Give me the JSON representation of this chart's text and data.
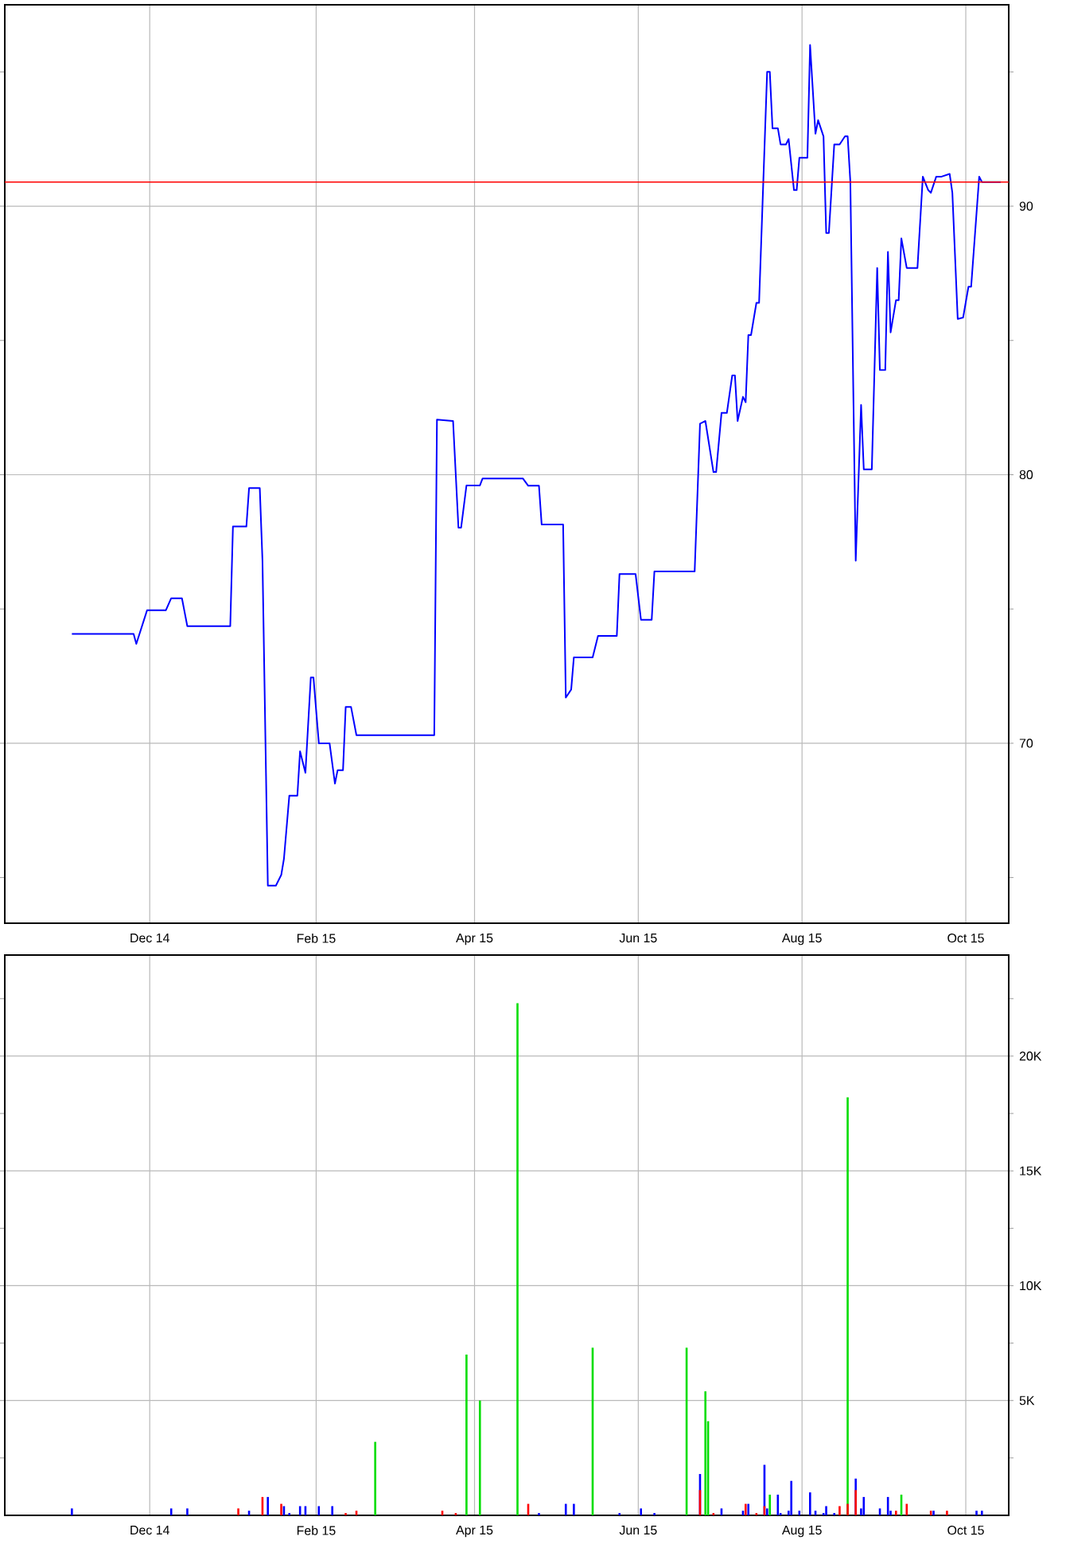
{
  "chart_data": [
    {
      "type": "line",
      "color": "#0000ff",
      "grid": true,
      "x": [
        "2014-11-02",
        "2014-11-25",
        "2014-11-26",
        "2014-11-30",
        "2014-12-07",
        "2014-12-09",
        "2014-12-13",
        "2014-12-15",
        "2014-12-31",
        "2015-01-01",
        "2015-01-06",
        "2015-01-07",
        "2015-01-11",
        "2015-01-12",
        "2015-01-14",
        "2015-01-17",
        "2015-01-19",
        "2015-01-20",
        "2015-01-22",
        "2015-01-25",
        "2015-01-26",
        "2015-01-28",
        "2015-01-30",
        "2015-01-31",
        "2015-02-02",
        "2015-02-06",
        "2015-02-08",
        "2015-02-09",
        "2015-02-11",
        "2015-02-12",
        "2015-02-14",
        "2015-02-16",
        "2015-03-17",
        "2015-03-18",
        "2015-03-24",
        "2015-03-26",
        "2015-03-27",
        "2015-03-29",
        "2015-04-03",
        "2015-04-04",
        "2015-04-19",
        "2015-04-21",
        "2015-04-25",
        "2015-04-26",
        "2015-05-04",
        "2015-05-05",
        "2015-05-07",
        "2015-05-08",
        "2015-05-15",
        "2015-05-17",
        "2015-05-24",
        "2015-05-25",
        "2015-05-31",
        "2015-06-02",
        "2015-06-06",
        "2015-06-07",
        "2015-06-22",
        "2015-06-24",
        "2015-06-26",
        "2015-06-29",
        "2015-06-30",
        "2015-07-02",
        "2015-07-04",
        "2015-07-06",
        "2015-07-07",
        "2015-07-08",
        "2015-07-10",
        "2015-07-11",
        "2015-07-12",
        "2015-07-13",
        "2015-07-15",
        "2015-07-16",
        "2015-07-19",
        "2015-07-20",
        "2015-07-21",
        "2015-07-23",
        "2015-07-24",
        "2015-07-26",
        "2015-07-27",
        "2015-07-29",
        "2015-07-30",
        "2015-07-31",
        "2015-08-03",
        "2015-08-04",
        "2015-08-06",
        "2015-08-07",
        "2015-08-09",
        "2015-08-10",
        "2015-08-11",
        "2015-08-13",
        "2015-08-15",
        "2015-08-17",
        "2015-08-18",
        "2015-08-19",
        "2015-08-21",
        "2015-08-23",
        "2015-08-24",
        "2015-08-27",
        "2015-08-29",
        "2015-08-30",
        "2015-09-01",
        "2015-09-02",
        "2015-09-03",
        "2015-09-05",
        "2015-09-06",
        "2015-09-07",
        "2015-09-09",
        "2015-09-13",
        "2015-09-15",
        "2015-09-17",
        "2015-09-18",
        "2015-09-20",
        "2015-09-22",
        "2015-09-25",
        "2015-09-26",
        "2015-09-28",
        "2015-09-30",
        "2015-10-02",
        "2015-10-03",
        "2015-10-06",
        "2015-10-07",
        "2015-10-14"
      ],
      "values": [
        74.07,
        74.07,
        73.7,
        74.95,
        74.95,
        75.4,
        75.4,
        74.36,
        74.36,
        78.07,
        78.07,
        79.5,
        79.5,
        76.8,
        64.7,
        64.7,
        65.1,
        65.7,
        68.05,
        68.05,
        69.7,
        68.9,
        72.45,
        72.45,
        70.0,
        70.0,
        68.5,
        69.0,
        69.0,
        71.35,
        71.35,
        70.3,
        70.3,
        82.05,
        82.0,
        78.03,
        78.03,
        79.6,
        79.6,
        79.86,
        79.86,
        79.59,
        79.59,
        78.15,
        78.15,
        71.7,
        72.0,
        73.2,
        73.2,
        74.0,
        74.0,
        76.3,
        76.3,
        74.6,
        74.6,
        76.4,
        76.4,
        81.9,
        82.0,
        80.1,
        80.1,
        82.3,
        82.3,
        83.7,
        83.7,
        82.0,
        82.9,
        82.7,
        85.2,
        85.2,
        86.4,
        86.4,
        95.0,
        95.0,
        92.9,
        92.9,
        92.3,
        92.3,
        92.5,
        90.6,
        90.6,
        91.8,
        91.8,
        96.0,
        92.7,
        93.2,
        92.6,
        89.0,
        89.0,
        92.3,
        92.3,
        92.6,
        92.6,
        90.9,
        76.8,
        82.6,
        80.2,
        80.2,
        87.7,
        83.9,
        83.9,
        88.3,
        85.3,
        86.5,
        86.5,
        88.8,
        87.7,
        87.7,
        91.1,
        90.6,
        90.5,
        91.1,
        91.1,
        91.2,
        90.5,
        85.8,
        85.85,
        87.0,
        87.0,
        91.1,
        90.9,
        90.9
      ],
      "xlim": [
        "2014-10-08",
        "2015-10-17"
      ],
      "xticks": [
        {
          "value": "2014-12-01",
          "label": "Dec 14"
        },
        {
          "value": "2015-02-01",
          "label": "Feb 15"
        },
        {
          "value": "2015-04-01",
          "label": "Apr 15"
        },
        {
          "value": "2015-06-01",
          "label": "Jun 15"
        },
        {
          "value": "2015-08-01",
          "label": "Aug 15"
        },
        {
          "value": "2015-10-01",
          "label": "Oct 15"
        }
      ],
      "ylim": [
        63.3,
        97.5
      ],
      "yticks": [
        {
          "value": 65,
          "label": null
        },
        70,
        {
          "value": 75,
          "label": null
        },
        80,
        {
          "value": 85,
          "label": null
        },
        90,
        {
          "value": 95,
          "label": null
        }
      ],
      "ref_lines": [
        {
          "axis": "y",
          "value": 90.9,
          "color": "#ff0000"
        }
      ]
    },
    {
      "type": "bar",
      "grid": true,
      "series": [
        {
          "color": "#0000ff",
          "x": [
            "2014-11-02",
            "2014-12-09",
            "2014-12-15",
            "2015-01-07",
            "2015-01-14",
            "2015-01-20",
            "2015-01-22",
            "2015-01-26",
            "2015-01-28",
            "2015-02-02",
            "2015-02-07",
            "2015-04-25",
            "2015-05-05",
            "2015-05-08",
            "2015-05-25",
            "2015-06-02",
            "2015-06-07",
            "2015-06-24",
            "2015-07-02",
            "2015-07-10",
            "2015-07-12",
            "2015-07-18",
            "2015-07-19",
            "2015-07-23",
            "2015-07-24",
            "2015-07-27",
            "2015-07-28",
            "2015-07-31",
            "2015-08-04",
            "2015-08-06",
            "2015-08-09",
            "2015-08-10",
            "2015-08-13",
            "2015-08-21",
            "2015-08-23",
            "2015-08-24",
            "2015-08-30",
            "2015-09-02",
            "2015-09-03",
            "2015-09-19",
            "2015-10-05",
            "2015-10-07"
          ],
          "values": [
            300,
            300,
            300,
            200,
            800,
            400,
            100,
            400,
            400,
            400,
            400,
            100,
            500,
            500,
            100,
            300,
            100,
            1800,
            300,
            200,
            500,
            2200,
            300,
            900,
            100,
            200,
            1500,
            200,
            1000,
            200,
            100,
            400,
            100,
            1600,
            300,
            800,
            300,
            800,
            200,
            200,
            200,
            200
          ]
        },
        {
          "color": "#00dd00",
          "x": [
            "2015-02-23",
            "2015-03-29",
            "2015-04-03",
            "2015-04-17",
            "2015-05-15",
            "2015-06-19",
            "2015-06-26",
            "2015-06-27",
            "2015-07-20",
            "2015-08-18",
            "2015-09-07"
          ],
          "values": [
            3200,
            7000,
            5000,
            22300,
            7300,
            7300,
            5400,
            4100,
            900,
            18200,
            900
          ]
        },
        {
          "color": "#ff0000",
          "x": [
            "2015-01-03",
            "2015-01-12",
            "2015-01-19",
            "2015-02-12",
            "2015-02-16",
            "2015-03-20",
            "2015-03-25",
            "2015-04-21",
            "2015-06-24",
            "2015-06-29",
            "2015-07-11",
            "2015-07-15",
            "2015-07-18",
            "2015-08-15",
            "2015-08-18",
            "2015-08-21",
            "2015-09-05",
            "2015-09-09",
            "2015-09-18",
            "2015-09-24"
          ],
          "values": [
            300,
            800,
            500,
            100,
            200,
            200,
            100,
            500,
            1100,
            100,
            500,
            100,
            400,
            400,
            500,
            1100,
            200,
            500,
            200,
            200
          ]
        }
      ],
      "xlim": [
        "2014-10-08",
        "2015-10-17"
      ],
      "xticks": [
        {
          "value": "2014-12-01",
          "label": "Dec 14"
        },
        {
          "value": "2015-02-01",
          "label": "Feb 15"
        },
        {
          "value": "2015-04-01",
          "label": "Apr 15"
        },
        {
          "value": "2015-06-01",
          "label": "Jun 15"
        },
        {
          "value": "2015-08-01",
          "label": "Aug 15"
        },
        {
          "value": "2015-10-01",
          "label": "Oct 15"
        }
      ],
      "ylim": [
        0,
        24400
      ],
      "yticks": [
        {
          "value": 2500,
          "label": null
        },
        {
          "value": 5000,
          "label": "5K"
        },
        {
          "value": 7500,
          "label": null
        },
        {
          "value": 10000,
          "label": "10K"
        },
        {
          "value": 12500,
          "label": null
        },
        {
          "value": 15000,
          "label": "15K"
        },
        {
          "value": 17500,
          "label": null
        },
        {
          "value": 20000,
          "label": "20K"
        },
        {
          "value": 22500,
          "label": null
        }
      ]
    }
  ]
}
